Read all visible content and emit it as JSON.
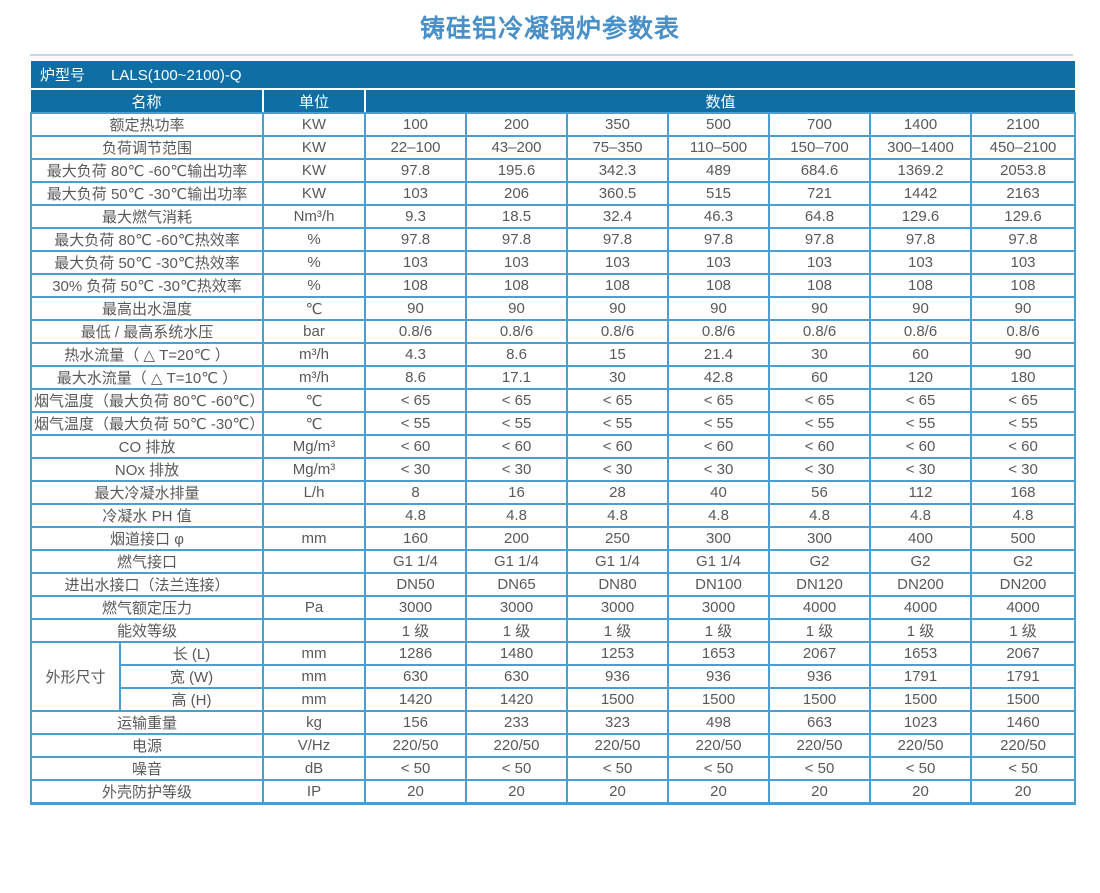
{
  "page_title": "铸硅铝冷凝锅炉参数表",
  "colors": {
    "header_band": "#0f6fa5",
    "table_border": "#4a9ed2",
    "title_text": "#4a90c8",
    "cell_text": "#58595b",
    "header_text": "#ffffff"
  },
  "table": {
    "model_label": "炉型号",
    "model_value": "LALS(100~2100)-Q",
    "col_headers": {
      "name": "名称",
      "unit": "单位",
      "value": "数值"
    },
    "rows": [
      {
        "name": "额定热功率",
        "unit": "KW",
        "values": [
          "100",
          "200",
          "350",
          "500",
          "700",
          "1400",
          "2100"
        ]
      },
      {
        "name": "负荷调节范围",
        "unit": "KW",
        "values": [
          "22–100",
          "43–200",
          "75–350",
          "110–500",
          "150–700",
          "300–1400",
          "450–2100"
        ]
      },
      {
        "name": "最大负荷 80℃ -60℃输出功率",
        "unit": "KW",
        "values": [
          "97.8",
          "195.6",
          "342.3",
          "489",
          "684.6",
          "1369.2",
          "2053.8"
        ]
      },
      {
        "name": "最大负荷 50℃ -30℃输出功率",
        "unit": "KW",
        "values": [
          "103",
          "206",
          "360.5",
          "515",
          "721",
          "1442",
          "2163"
        ]
      },
      {
        "name": "最大燃气消耗",
        "unit": "Nm³/h",
        "values": [
          "9.3",
          "18.5",
          "32.4",
          "46.3",
          "64.8",
          "129.6",
          "129.6"
        ]
      },
      {
        "name": "最大负荷 80℃ -60℃热效率",
        "unit": "%",
        "values": [
          "97.8",
          "97.8",
          "97.8",
          "97.8",
          "97.8",
          "97.8",
          "97.8"
        ]
      },
      {
        "name": "最大负荷 50℃ -30℃热效率",
        "unit": "%",
        "values": [
          "103",
          "103",
          "103",
          "103",
          "103",
          "103",
          "103"
        ]
      },
      {
        "name": "30% 负荷 50℃ -30℃热效率",
        "unit": "%",
        "values": [
          "108",
          "108",
          "108",
          "108",
          "108",
          "108",
          "108"
        ]
      },
      {
        "name": "最高出水温度",
        "unit": "℃",
        "values": [
          "90",
          "90",
          "90",
          "90",
          "90",
          "90",
          "90"
        ]
      },
      {
        "name": "最低 / 最高系统水压",
        "unit": "bar",
        "values": [
          "0.8/6",
          "0.8/6",
          "0.8/6",
          "0.8/6",
          "0.8/6",
          "0.8/6",
          "0.8/6"
        ]
      },
      {
        "name": "热水流量（ △ T=20℃ ）",
        "unit": "m³/h",
        "values": [
          "4.3",
          "8.6",
          "15",
          "21.4",
          "30",
          "60",
          "90"
        ]
      },
      {
        "name": "最大水流量（ △ T=10℃ ）",
        "unit": "m³/h",
        "values": [
          "8.6",
          "17.1",
          "30",
          "42.8",
          "60",
          "120",
          "180"
        ]
      },
      {
        "name": "烟气温度（最大负荷 80℃ -60℃）",
        "unit": "℃",
        "values": [
          "< 65",
          "< 65",
          "< 65",
          "< 65",
          "< 65",
          "< 65",
          "< 65"
        ]
      },
      {
        "name": "烟气温度（最大负荷 50℃ -30℃）",
        "unit": "℃",
        "values": [
          "< 55",
          "< 55",
          "< 55",
          "< 55",
          "< 55",
          "< 55",
          "< 55"
        ]
      },
      {
        "name": "CO 排放",
        "unit": "Mg/m³",
        "values": [
          "< 60",
          "< 60",
          "< 60",
          "< 60",
          "< 60",
          "< 60",
          "< 60"
        ]
      },
      {
        "name": "NOx 排放",
        "unit": "Mg/m³",
        "values": [
          "< 30",
          "< 30",
          "< 30",
          "< 30",
          "< 30",
          "< 30",
          "< 30"
        ]
      },
      {
        "name": "最大冷凝水排量",
        "unit": "L/h",
        "values": [
          "8",
          "16",
          "28",
          "40",
          "56",
          "112",
          "168"
        ]
      },
      {
        "name": "冷凝水 PH 值",
        "unit": "",
        "values": [
          "4.8",
          "4.8",
          "4.8",
          "4.8",
          "4.8",
          "4.8",
          "4.8"
        ]
      },
      {
        "name": "烟道接口 φ",
        "unit": "mm",
        "values": [
          "160",
          "200",
          "250",
          "300",
          "300",
          "400",
          "500"
        ]
      },
      {
        "name": "燃气接口",
        "unit": "",
        "values": [
          "G1 1/4",
          "G1 1/4",
          "G1 1/4",
          "G1 1/4",
          "G2",
          "G2",
          "G2"
        ]
      },
      {
        "name": "进出水接口（法兰连接）",
        "unit": "",
        "values": [
          "DN50",
          "DN65",
          "DN80",
          "DN100",
          "DN120",
          "DN200",
          "DN200"
        ]
      },
      {
        "name": "燃气额定压力",
        "unit": "Pa",
        "values": [
          "3000",
          "3000",
          "3000",
          "3000",
          "4000",
          "4000",
          "4000"
        ]
      },
      {
        "name": "能效等级",
        "unit": "",
        "values": [
          "1 级",
          "1 级",
          "1 级",
          "1 级",
          "1 级",
          "1 级",
          "1 级"
        ]
      },
      {
        "group": "外形尺寸",
        "group_span": 3,
        "in_group": true,
        "name": "长 (L)",
        "unit": "mm",
        "values": [
          "1286",
          "1480",
          "1253",
          "1653",
          "2067",
          "1653",
          "2067"
        ]
      },
      {
        "in_group": true,
        "name": "宽 (W)",
        "unit": "mm",
        "values": [
          "630",
          "630",
          "936",
          "936",
          "936",
          "1791",
          "1791"
        ]
      },
      {
        "in_group": true,
        "name": "高 (H)",
        "unit": "mm",
        "values": [
          "1420",
          "1420",
          "1500",
          "1500",
          "1500",
          "1500",
          "1500"
        ]
      },
      {
        "name": "运输重量",
        "unit": "kg",
        "values": [
          "156",
          "233",
          "323",
          "498",
          "663",
          "1023",
          "1460"
        ]
      },
      {
        "name": "电源",
        "unit": "V/Hz",
        "values": [
          "220/50",
          "220/50",
          "220/50",
          "220/50",
          "220/50",
          "220/50",
          "220/50"
        ]
      },
      {
        "name": "噪音",
        "unit": "dB",
        "values": [
          "< 50",
          "< 50",
          "< 50",
          "< 50",
          "< 50",
          "< 50",
          "< 50"
        ]
      },
      {
        "name": "外壳防护等级",
        "unit": "IP",
        "values": [
          "20",
          "20",
          "20",
          "20",
          "20",
          "20",
          "20"
        ]
      }
    ]
  }
}
